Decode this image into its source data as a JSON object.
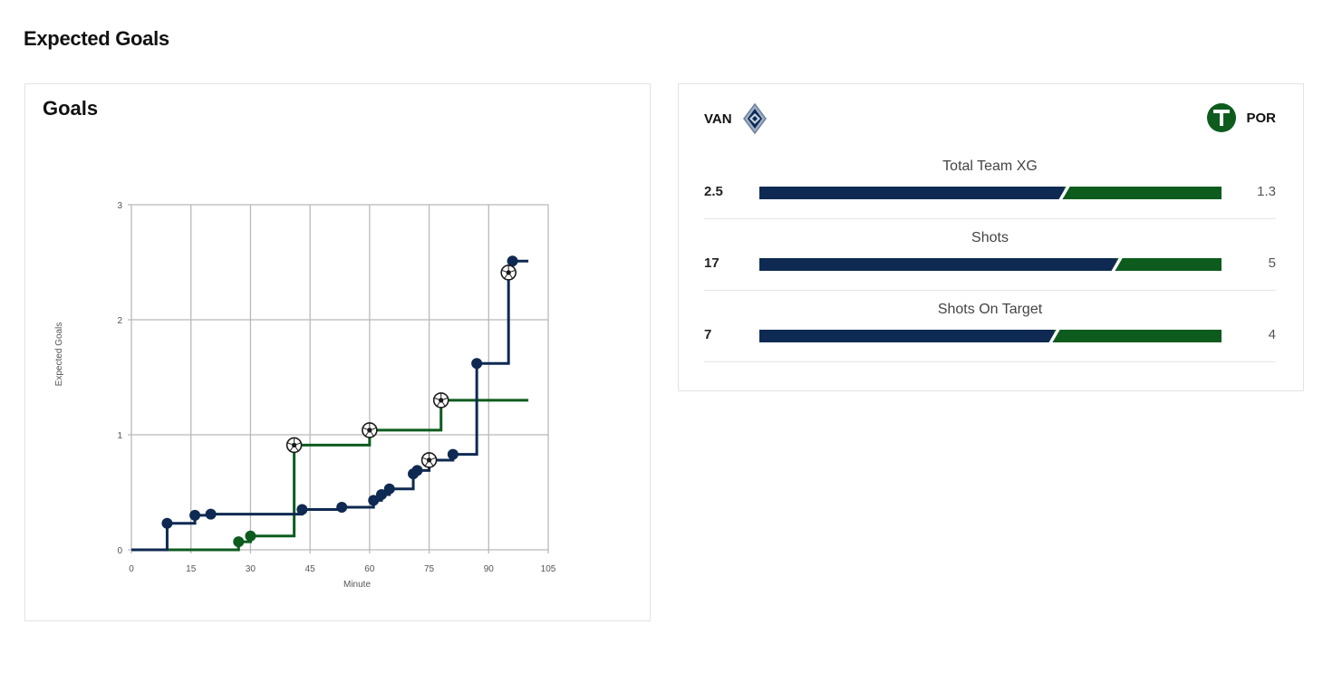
{
  "page": {
    "title": "Expected Goals"
  },
  "colors": {
    "home": "#0e2a52",
    "away": "#0d5c1e",
    "grid": "#b9b9b9"
  },
  "chart_data": {
    "type": "line",
    "title": "Goals",
    "xlabel": "Minute",
    "ylabel": "Expected Goals",
    "xlim": [
      0,
      105
    ],
    "ylim": [
      0,
      3
    ],
    "xticks": [
      0,
      15,
      30,
      45,
      60,
      75,
      90,
      105
    ],
    "yticks": [
      0,
      1,
      2,
      3
    ],
    "grid": true,
    "series": [
      {
        "team": "VAN",
        "step": [
          [
            0,
            0
          ],
          [
            9,
            0
          ],
          [
            9,
            0.23
          ],
          [
            16,
            0.23
          ],
          [
            16,
            0.3
          ],
          [
            20,
            0.3
          ],
          [
            20,
            0.31
          ],
          [
            43,
            0.31
          ],
          [
            43,
            0.35
          ],
          [
            53,
            0.35
          ],
          [
            53,
            0.37
          ],
          [
            61,
            0.37
          ],
          [
            61,
            0.43
          ],
          [
            63,
            0.43
          ],
          [
            63,
            0.48
          ],
          [
            65,
            0.48
          ],
          [
            65,
            0.53
          ],
          [
            71,
            0.53
          ],
          [
            71,
            0.66
          ],
          [
            72,
            0.66
          ],
          [
            72,
            0.69
          ],
          [
            75,
            0.69
          ],
          [
            75,
            0.78
          ],
          [
            81,
            0.78
          ],
          [
            81,
            0.83
          ],
          [
            87,
            0.83
          ],
          [
            87,
            1.62
          ],
          [
            95,
            1.62
          ],
          [
            95,
            2.41
          ],
          [
            96,
            2.41
          ],
          [
            96,
            2.51
          ],
          [
            100,
            2.51
          ]
        ],
        "shots": [
          [
            9,
            0.23
          ],
          [
            16,
            0.3
          ],
          [
            20,
            0.31
          ],
          [
            43,
            0.35
          ],
          [
            53,
            0.37
          ],
          [
            61,
            0.43
          ],
          [
            63,
            0.48
          ],
          [
            65,
            0.53
          ],
          [
            71,
            0.66
          ],
          [
            72,
            0.69
          ],
          [
            81,
            0.83
          ],
          [
            87,
            1.62
          ],
          [
            96,
            2.51
          ]
        ],
        "goals": [
          [
            75,
            0.78
          ],
          [
            95,
            2.41
          ]
        ]
      },
      {
        "team": "POR",
        "step": [
          [
            0,
            0
          ],
          [
            27,
            0
          ],
          [
            27,
            0.07
          ],
          [
            30,
            0.07
          ],
          [
            30,
            0.12
          ],
          [
            41,
            0.12
          ],
          [
            41,
            0.91
          ],
          [
            60,
            0.91
          ],
          [
            60,
            1.04
          ],
          [
            78,
            1.04
          ],
          [
            78,
            1.3
          ],
          [
            100,
            1.3
          ]
        ],
        "shots": [
          [
            27,
            0.07
          ],
          [
            30,
            0.12
          ]
        ],
        "goals": [
          [
            41,
            0.91
          ],
          [
            60,
            1.04
          ],
          [
            78,
            1.3
          ]
        ]
      }
    ]
  },
  "match": {
    "home": {
      "code": "VAN",
      "icon": "whitecaps-crest-icon"
    },
    "away": {
      "code": "POR",
      "icon": "timbers-crest-icon"
    },
    "stats": [
      {
        "label": "Total Team XG",
        "home": "2.5",
        "away": "1.3",
        "home_value": 2.5,
        "away_value": 1.3
      },
      {
        "label": "Shots",
        "home": "17",
        "away": "5",
        "home_value": 17,
        "away_value": 5
      },
      {
        "label": "Shots On Target",
        "home": "7",
        "away": "4",
        "home_value": 7,
        "away_value": 4
      }
    ]
  }
}
